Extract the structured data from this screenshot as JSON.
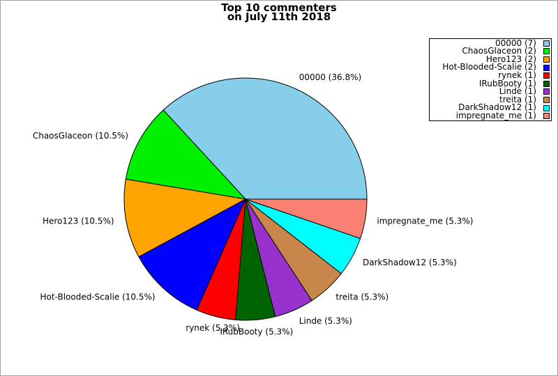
{
  "title": {
    "line1": "Top 10 commenters",
    "line2": "on July 11th 2018"
  },
  "chart_data": {
    "type": "pie",
    "title": "Top 10 commenters on July 11th 2018",
    "legend_position": "top-right",
    "start_angle_deg": 0,
    "direction": "counterclockwise",
    "slices": [
      {
        "name": "00000",
        "count": 7,
        "percent": 36.8,
        "label": "00000 (36.8%)",
        "legend_label": "00000 (7)",
        "color": "#87CEEB"
      },
      {
        "name": "ChaosGlaceon",
        "count": 2,
        "percent": 10.5,
        "label": "ChaosGlaceon (10.5%)",
        "legend_label": "ChaosGlaceon (2)",
        "color": "#00EE00"
      },
      {
        "name": "Hero123",
        "count": 2,
        "percent": 10.5,
        "label": "Hero123 (10.5%)",
        "legend_label": "Hero123 (2)",
        "color": "#FFA500"
      },
      {
        "name": "Hot-Blooded-Scalie",
        "count": 2,
        "percent": 10.5,
        "label": "Hot-Blooded-Scalie (10.5%)",
        "legend_label": "Hot-Blooded-Scalie (2)",
        "color": "#0000FF"
      },
      {
        "name": "rynek",
        "count": 1,
        "percent": 5.3,
        "label": "rynek (5.3%)",
        "legend_label": "rynek (1)",
        "color": "#FF0000"
      },
      {
        "name": "IRubBooty",
        "count": 1,
        "percent": 5.3,
        "label": "IRubBooty (5.3%)",
        "legend_label": "IRubBooty (1)",
        "color": "#006400"
      },
      {
        "name": "Linde",
        "count": 1,
        "percent": 5.3,
        "label": "Linde (5.3%)",
        "legend_label": "Linde (1)",
        "color": "#9932CC"
      },
      {
        "name": "treita",
        "count": 1,
        "percent": 5.3,
        "label": "treita (5.3%)",
        "legend_label": "treita (1)",
        "color": "#C8864B"
      },
      {
        "name": "DarkShadow12",
        "count": 1,
        "percent": 5.3,
        "label": "DarkShadow12 (5.3%)",
        "legend_label": "DarkShadow12 (1)",
        "color": "#00FFFF"
      },
      {
        "name": "impregnate_me",
        "count": 1,
        "percent": 5.3,
        "label": "impregnate_me (5.3%)",
        "legend_label": "impregnate_me (1)",
        "color": "#FA8072"
      }
    ]
  }
}
